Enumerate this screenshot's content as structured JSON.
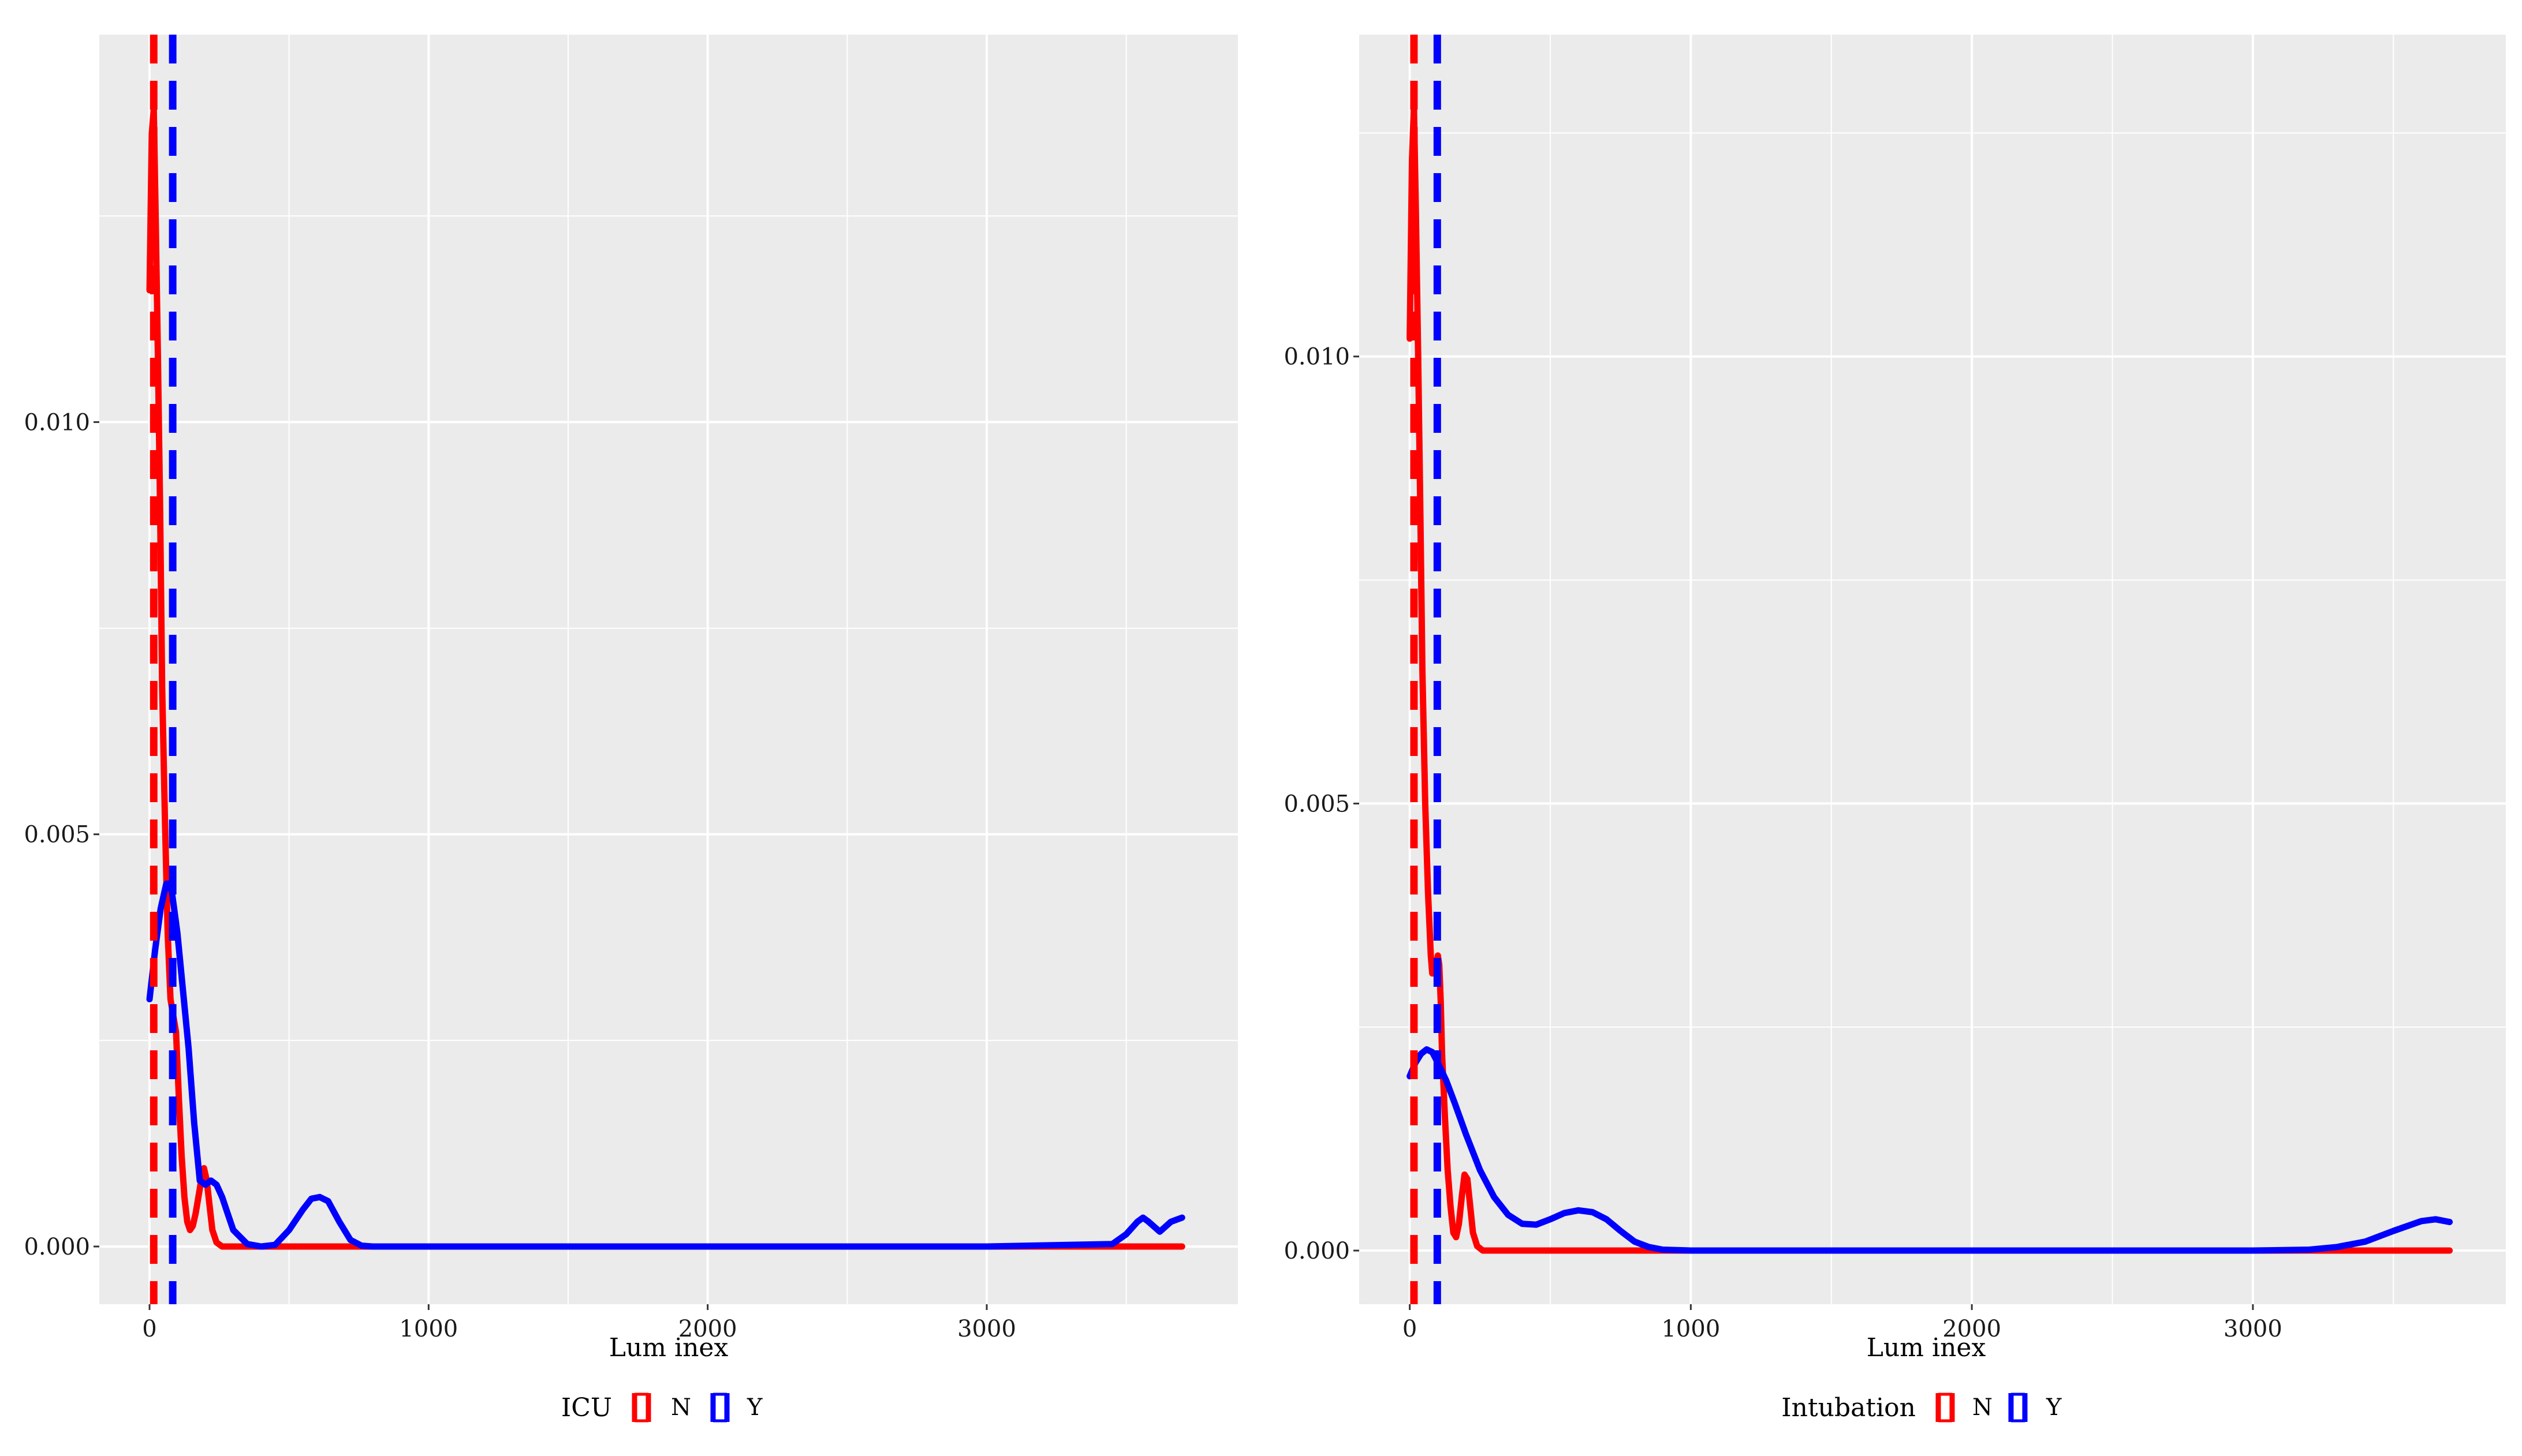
{
  "chart_data": [
    {
      "type": "line",
      "subtype": "density",
      "xlabel": "Lum inex",
      "ylabel": "",
      "xlim": [
        -180,
        3900
      ],
      "ylim": [
        -0.0007,
        0.0147
      ],
      "x_ticks": [
        0,
        1000,
        2000,
        3000
      ],
      "x_tick_labels": [
        "0",
        "1000",
        "2000",
        "3000"
      ],
      "y_ticks": [
        0.0,
        0.005,
        0.01
      ],
      "y_tick_labels": [
        "0.000",
        "0.005",
        "0.010"
      ],
      "grid": true,
      "legend": {
        "title": "ICU",
        "position": "bottom",
        "entries": [
          "N",
          "Y"
        ]
      },
      "series": [
        {
          "name": "N",
          "color": "#ff0000",
          "x": [
            0,
            8,
            15,
            22,
            30,
            38,
            45,
            55,
            65,
            75,
            85,
            95,
            105,
            115,
            125,
            135,
            145,
            155,
            165,
            175,
            185,
            195,
            205,
            215,
            225,
            240,
            260,
            300,
            400,
            600,
            1000,
            2000,
            3000,
            3500,
            3700
          ],
          "values": [
            0.0116,
            0.0135,
            0.0138,
            0.0125,
            0.0108,
            0.0089,
            0.0068,
            0.0052,
            0.0038,
            0.003,
            0.0028,
            0.0026,
            0.0018,
            0.0011,
            0.0006,
            0.0003,
            0.0002,
            0.00025,
            0.0004,
            0.0006,
            0.0008,
            0.00095,
            0.0008,
            0.0005,
            0.0002,
            5e-05,
            0.0,
            0.0,
            0.0,
            0.0,
            0.0,
            0.0,
            0.0,
            0.0,
            0.0
          ]
        },
        {
          "name": "Y",
          "color": "#0000ff",
          "x": [
            0,
            20,
            40,
            60,
            70,
            80,
            100,
            120,
            140,
            160,
            180,
            200,
            220,
            240,
            260,
            280,
            300,
            350,
            400,
            450,
            500,
            550,
            580,
            610,
            640,
            680,
            720,
            760,
            800,
            1000,
            2000,
            3000,
            3450,
            3500,
            3540,
            3560,
            3580,
            3620,
            3660,
            3700
          ],
          "values": [
            0.003,
            0.0036,
            0.0041,
            0.0044,
            0.0044,
            0.0043,
            0.0038,
            0.0031,
            0.0024,
            0.0015,
            0.0008,
            0.00075,
            0.0008,
            0.00075,
            0.0006,
            0.0004,
            0.0002,
            3e-05,
            0.0,
            2e-05,
            0.0002,
            0.00045,
            0.00058,
            0.0006,
            0.00055,
            0.0003,
            8e-05,
            1e-05,
            0.0,
            0.0,
            0.0,
            0.0,
            3e-05,
            0.00015,
            0.0003,
            0.00035,
            0.0003,
            0.00018,
            0.0003,
            0.00035
          ]
        }
      ],
      "vlines": [
        {
          "series": "N",
          "x": 15,
          "color": "#ff0000",
          "style": "dashed"
        },
        {
          "series": "Y",
          "x": 83,
          "color": "#0000ff",
          "style": "dashed"
        }
      ]
    },
    {
      "type": "line",
      "subtype": "density",
      "xlabel": "Lum inex",
      "ylabel": "",
      "xlim": [
        -180,
        3900
      ],
      "ylim": [
        -0.0006,
        0.0136
      ],
      "x_ticks": [
        0,
        1000,
        2000,
        3000
      ],
      "x_tick_labels": [
        "0",
        "1000",
        "2000",
        "3000"
      ],
      "y_ticks": [
        0.0,
        0.005,
        0.01
      ],
      "y_tick_labels": [
        "0.000",
        "0.005",
        "0.010"
      ],
      "grid": true,
      "legend": {
        "title": "Intubation",
        "position": "bottom",
        "entries": [
          "N",
          "Y"
        ]
      },
      "series": [
        {
          "name": "N",
          "color": "#ff0000",
          "x": [
            0,
            8,
            15,
            22,
            30,
            38,
            45,
            55,
            65,
            75,
            80,
            90,
            100,
            105,
            110,
            115,
            125,
            135,
            145,
            155,
            165,
            175,
            185,
            195,
            205,
            215,
            225,
            240,
            260,
            300,
            400,
            1000,
            2000,
            3000,
            3500,
            3700
          ],
          "values": [
            0.0102,
            0.0122,
            0.0128,
            0.0116,
            0.01,
            0.0082,
            0.0065,
            0.005,
            0.004,
            0.0033,
            0.0031,
            0.0031,
            0.0033,
            0.0032,
            0.0028,
            0.0022,
            0.0015,
            0.0009,
            0.0005,
            0.0002,
            0.00015,
            0.0003,
            0.0006,
            0.00085,
            0.0008,
            0.0005,
            0.0002,
            5e-05,
            0.0,
            0.0,
            0.0,
            0.0,
            0.0,
            0.0,
            0.0,
            0.0
          ]
        },
        {
          "name": "Y",
          "color": "#0000ff",
          "x": [
            0,
            20,
            40,
            60,
            80,
            100,
            130,
            160,
            200,
            250,
            300,
            350,
            400,
            450,
            500,
            550,
            600,
            650,
            700,
            750,
            800,
            850,
            900,
            1000,
            1200,
            2000,
            3000,
            3200,
            3300,
            3400,
            3500,
            3600,
            3650,
            3700
          ],
          "values": [
            0.00195,
            0.0021,
            0.0022,
            0.00225,
            0.00222,
            0.0021,
            0.0019,
            0.00165,
            0.0013,
            0.0009,
            0.0006,
            0.0004,
            0.0003,
            0.00029,
            0.00035,
            0.00042,
            0.00045,
            0.00043,
            0.00035,
            0.00022,
            0.0001,
            4e-05,
            1e-05,
            0.0,
            0.0,
            0.0,
            0.0,
            1e-05,
            4e-05,
            0.0001,
            0.00022,
            0.00033,
            0.00035,
            0.00032
          ]
        }
      ],
      "vlines": [
        {
          "series": "N",
          "x": 15,
          "color": "#ff0000",
          "style": "dashed"
        },
        {
          "series": "Y",
          "x": 98,
          "color": "#0000ff",
          "style": "dashed"
        }
      ]
    }
  ]
}
